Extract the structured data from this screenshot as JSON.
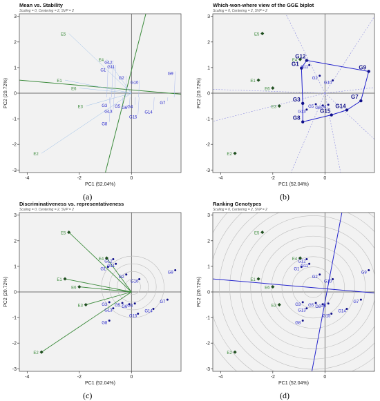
{
  "panel_captions": [
    "(a)",
    "(b)",
    "(c)",
    "(d)"
  ],
  "chart_data": [
    {
      "type": "scatter",
      "title": "Mean vs. Stability",
      "subtitle": "Scaling = 0, Centering = 2, SVP = 2",
      "xlabel": "PC1 (52.04%)",
      "ylabel": "PC2 (20.72%)",
      "xlim": [
        -4.3,
        1.9
      ],
      "ylim": [
        -3.1,
        3.1
      ],
      "x_ticks": [
        "-4",
        "-2",
        "0"
      ],
      "y_ticks": [
        "-3",
        "-2",
        "-1",
        "0",
        "1",
        "2",
        "3"
      ],
      "environments": [
        {
          "label": "E1",
          "x": -2.55,
          "y": 0.51
        },
        {
          "label": "E2",
          "x": -3.45,
          "y": -2.35
        },
        {
          "label": "E3",
          "x": -1.75,
          "y": -0.5
        },
        {
          "label": "E4",
          "x": -0.95,
          "y": 1.32
        },
        {
          "label": "E5",
          "x": -2.4,
          "y": 2.33
        },
        {
          "label": "E6",
          "x": -2.0,
          "y": 0.2
        }
      ],
      "genotypes": [
        {
          "label": "G1",
          "x": -0.9,
          "y": 0.98
        },
        {
          "label": "G2",
          "x": -0.2,
          "y": 0.68
        },
        {
          "label": "G3",
          "x": -0.85,
          "y": -0.4
        },
        {
          "label": "G4",
          "x": 0.13,
          "y": -0.45
        },
        {
          "label": "G5",
          "x": -0.35,
          "y": -0.43
        },
        {
          "label": "G6",
          "x": -0.08,
          "y": -0.48
        },
        {
          "label": "G7",
          "x": 1.38,
          "y": -0.3
        },
        {
          "label": "G8",
          "x": -0.85,
          "y": -1.12
        },
        {
          "label": "G9",
          "x": 1.68,
          "y": 0.85
        },
        {
          "label": "G10",
          "x": 0.3,
          "y": 0.5
        },
        {
          "label": "G11",
          "x": -0.6,
          "y": 1.1
        },
        {
          "label": "G12",
          "x": -0.7,
          "y": 1.28
        },
        {
          "label": "G13",
          "x": -0.7,
          "y": -0.64
        },
        {
          "label": "G14",
          "x": 0.84,
          "y": -0.66
        },
        {
          "label": "G15",
          "x": 0.25,
          "y": -0.85
        }
      ],
      "labeled_genotypes": [],
      "axis_lines": [
        {
          "x1": -4.3,
          "y1": 0.51,
          "x2": 1.9,
          "y2": -0.04
        },
        {
          "x1": -1.0,
          "y1": -3.1,
          "x2": 0.55,
          "y2": 3.1
        }
      ]
    },
    {
      "type": "scatter",
      "title": "Which-won-where view of the GGE biplot",
      "subtitle": "Scaling = 0, Centering = 2, SVP = 2",
      "xlabel": "PC1 (52.04%)",
      "ylabel": "PC2 (20.72%)",
      "xlim": [
        -4.3,
        1.9
      ],
      "ylim": [
        -3.1,
        3.1
      ],
      "x_ticks": [
        "-4",
        "-2",
        "0"
      ],
      "y_ticks": [
        "-3",
        "-2",
        "-1",
        "0",
        "1",
        "2",
        "3"
      ],
      "environments": [
        {
          "label": "E1",
          "x": -2.55,
          "y": 0.51
        },
        {
          "label": "E2",
          "x": -3.45,
          "y": -2.35
        },
        {
          "label": "E3",
          "x": -1.75,
          "y": -0.5
        },
        {
          "label": "E4",
          "x": -0.95,
          "y": 1.32
        },
        {
          "label": "E5",
          "x": -2.4,
          "y": 2.33
        },
        {
          "label": "E6",
          "x": -2.0,
          "y": 0.2
        }
      ],
      "genotypes": [
        {
          "label": "G1",
          "x": -0.9,
          "y": 0.98
        },
        {
          "label": "G2",
          "x": -0.2,
          "y": 0.68
        },
        {
          "label": "G3",
          "x": -0.85,
          "y": -0.4
        },
        {
          "label": "G4",
          "x": 0.13,
          "y": -0.45
        },
        {
          "label": "G5",
          "x": -0.35,
          "y": -0.43
        },
        {
          "label": "G6",
          "x": -0.08,
          "y": -0.48
        },
        {
          "label": "G7",
          "x": 1.38,
          "y": -0.3
        },
        {
          "label": "G8",
          "x": -0.85,
          "y": -1.12
        },
        {
          "label": "G9",
          "x": 1.68,
          "y": 0.85
        },
        {
          "label": "G10",
          "x": 0.3,
          "y": 0.5
        },
        {
          "label": "G11",
          "x": -0.6,
          "y": 1.1
        },
        {
          "label": "G12",
          "x": -0.7,
          "y": 1.28
        },
        {
          "label": "G13",
          "x": -0.7,
          "y": -0.64
        },
        {
          "label": "G14",
          "x": 0.84,
          "y": -0.66
        },
        {
          "label": "G15",
          "x": 0.25,
          "y": -0.85
        }
      ],
      "labeled_genotypes": [
        "G1",
        "G3",
        "G7",
        "G8",
        "G9",
        "G12",
        "G14",
        "G15"
      ],
      "polygon": [
        {
          "x": -0.7,
          "y": 1.28
        },
        {
          "x": 1.68,
          "y": 0.85
        },
        {
          "x": 1.38,
          "y": -0.3
        },
        {
          "x": 0.84,
          "y": -0.66
        },
        {
          "x": 0.25,
          "y": -0.85
        },
        {
          "x": -0.85,
          "y": -1.12
        },
        {
          "x": -0.85,
          "y": -0.4
        },
        {
          "x": -0.9,
          "y": 0.98
        }
      ],
      "rays": [
        {
          "x": -1.5,
          "y": 3.1
        },
        {
          "x": 1.9,
          "y": 3.0
        },
        {
          "x": 1.9,
          "y": 0.22
        },
        {
          "x": 1.9,
          "y": -1.8
        },
        {
          "x": 0.6,
          "y": -3.1
        },
        {
          "x": -1.3,
          "y": -3.1
        },
        {
          "x": -4.3,
          "y": -1.1
        },
        {
          "x": -4.3,
          "y": 0.15
        }
      ]
    },
    {
      "type": "scatter",
      "title": "Discriminativeness vs. representativeness",
      "subtitle": "Scaling = 0, Centering = 2, SVP = 2",
      "xlabel": "PC1 (52.04%)",
      "ylabel": "PC2 (20.72%)",
      "xlim": [
        -4.3,
        1.9
      ],
      "ylim": [
        -3.1,
        3.1
      ],
      "x_ticks": [
        "-4",
        "-2",
        "0"
      ],
      "y_ticks": [
        "-3",
        "-2",
        "-1",
        "0",
        "1",
        "2",
        "3"
      ],
      "environments": [
        {
          "label": "E1",
          "x": -2.55,
          "y": 0.51
        },
        {
          "label": "E2",
          "x": -3.45,
          "y": -2.35
        },
        {
          "label": "E3",
          "x": -1.75,
          "y": -0.5
        },
        {
          "label": "E4",
          "x": -0.95,
          "y": 1.32
        },
        {
          "label": "E5",
          "x": -2.4,
          "y": 2.33
        },
        {
          "label": "E6",
          "x": -2.0,
          "y": 0.2
        }
      ],
      "genotypes": [
        {
          "label": "G1",
          "x": -0.9,
          "y": 0.98
        },
        {
          "label": "G2",
          "x": -0.2,
          "y": 0.68
        },
        {
          "label": "G3",
          "x": -0.85,
          "y": -0.4
        },
        {
          "label": "G4",
          "x": 0.13,
          "y": -0.45
        },
        {
          "label": "G5",
          "x": -0.35,
          "y": -0.43
        },
        {
          "label": "G6",
          "x": -0.08,
          "y": -0.48
        },
        {
          "label": "G7",
          "x": 1.38,
          "y": -0.3
        },
        {
          "label": "G8",
          "x": -0.85,
          "y": -1.12
        },
        {
          "label": "G9",
          "x": 1.68,
          "y": 0.85
        },
        {
          "label": "G10",
          "x": 0.3,
          "y": 0.5
        },
        {
          "label": "G11",
          "x": -0.6,
          "y": 1.1
        },
        {
          "label": "G12",
          "x": -0.7,
          "y": 1.28
        },
        {
          "label": "G13",
          "x": -0.7,
          "y": -0.64
        },
        {
          "label": "G14",
          "x": 0.84,
          "y": -0.66
        },
        {
          "label": "G15",
          "x": 0.25,
          "y": -0.85
        }
      ],
      "labeled_genotypes": [],
      "circle_center": {
        "x": 0.05,
        "y": 0.2
      },
      "circle_radii": [
        0.3,
        0.6,
        0.9,
        1.2
      ]
    },
    {
      "type": "scatter",
      "title": "Ranking Genotypes",
      "subtitle": "Scaling = 0, Centering = 2, SVP = 2",
      "xlabel": "PC1 (52.04%)",
      "ylabel": "PC2 (20.72%)",
      "xlim": [
        -4.3,
        1.9
      ],
      "ylim": [
        -3.1,
        3.1
      ],
      "x_ticks": [
        "-4",
        "-2",
        "0"
      ],
      "y_ticks": [
        "-3",
        "-2",
        "-1",
        "0",
        "1",
        "2",
        "3"
      ],
      "environments": [
        {
          "label": "E1",
          "x": -2.55,
          "y": 0.51
        },
        {
          "label": "E2",
          "x": -3.45,
          "y": -2.35
        },
        {
          "label": "E3",
          "x": -1.75,
          "y": -0.5
        },
        {
          "label": "E4",
          "x": -0.95,
          "y": 1.32
        },
        {
          "label": "E5",
          "x": -2.4,
          "y": 2.33
        },
        {
          "label": "E6",
          "x": -2.0,
          "y": 0.2
        }
      ],
      "genotypes": [
        {
          "label": "G1",
          "x": -0.9,
          "y": 0.98
        },
        {
          "label": "G2",
          "x": -0.2,
          "y": 0.68
        },
        {
          "label": "G3",
          "x": -0.85,
          "y": -0.4
        },
        {
          "label": "G4",
          "x": 0.13,
          "y": -0.45
        },
        {
          "label": "G5",
          "x": -0.35,
          "y": -0.43
        },
        {
          "label": "G6",
          "x": -0.08,
          "y": -0.48
        },
        {
          "label": "G7",
          "x": 1.38,
          "y": -0.3
        },
        {
          "label": "G8",
          "x": -0.85,
          "y": -1.12
        },
        {
          "label": "G9",
          "x": 1.68,
          "y": 0.85
        },
        {
          "label": "G10",
          "x": 0.3,
          "y": 0.5
        },
        {
          "label": "G11",
          "x": -0.6,
          "y": 1.1
        },
        {
          "label": "G12",
          "x": -0.7,
          "y": 1.28
        },
        {
          "label": "G13",
          "x": -0.7,
          "y": -0.64
        },
        {
          "label": "G14",
          "x": 0.84,
          "y": -0.66
        },
        {
          "label": "G15",
          "x": 0.25,
          "y": -0.85
        }
      ],
      "labeled_genotypes": [],
      "axis_lines": [
        {
          "x1": -4.3,
          "y1": 0.51,
          "x2": 1.9,
          "y2": -0.04
        },
        {
          "x1": -0.5,
          "y1": -3.1,
          "x2": 0.65,
          "y2": 3.1
        }
      ],
      "circle_center": {
        "x": -0.45,
        "y": 0.18
      },
      "circle_radii": [
        0.4,
        0.8,
        1.2,
        1.6,
        2.0,
        2.4,
        2.8,
        3.2,
        3.6,
        4.0,
        4.4
      ]
    }
  ]
}
